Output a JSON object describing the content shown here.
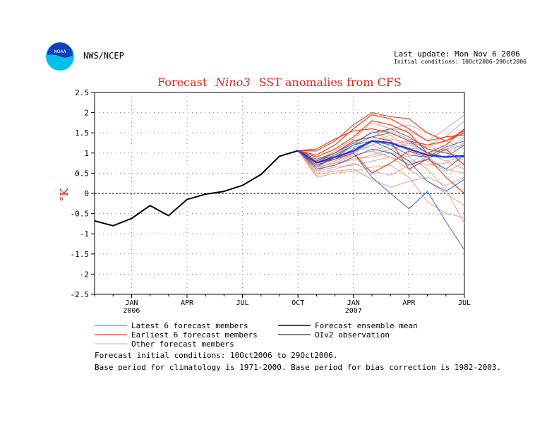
{
  "header": {
    "agency": "NWS/NCEP",
    "logo_text": "NOAA",
    "last_update": "Last update: Mon Nov 6 2006",
    "initial_conditions": "Initial conditions: 10Oct2006-29Oct2006"
  },
  "colors": {
    "title": "#e0201a",
    "latest_members": "#2a72c8",
    "earliest_members": "#e8401a",
    "other_members": "#e8a090",
    "ensemble_mean": "#2040e0",
    "observation": "#000000",
    "logo_outer": "#00c0e8",
    "logo_inner": "#1040c0"
  },
  "chart_data": {
    "type": "line",
    "title_parts": [
      "Forecast",
      "Nino3",
      "SST anomalies from CFS"
    ],
    "ylabel": "°K",
    "ylim": [
      -2.5,
      2.5
    ],
    "yticks": [
      "2.5",
      "2",
      "1.5",
      "1",
      "0.5",
      "0",
      "-0.5",
      "-1",
      "-1.5",
      "-2",
      "-2.5"
    ],
    "xtick_labels": [
      {
        "label": "JAN",
        "sub": "2006"
      },
      {
        "label": "APR",
        "sub": ""
      },
      {
        "label": "JUL",
        "sub": ""
      },
      {
        "label": "OCT",
        "sub": ""
      },
      {
        "label": "JAN",
        "sub": "2007"
      },
      {
        "label": "APR",
        "sub": ""
      },
      {
        "label": "JUL",
        "sub": ""
      }
    ],
    "grid": true,
    "observation": {
      "name": "OIv2 observation",
      "x": [
        "2005-11",
        "2005-12",
        "2006-01",
        "2006-02",
        "2006-03",
        "2006-04",
        "2006-05",
        "2006-06",
        "2006-07",
        "2006-08",
        "2006-09",
        "2006-10"
      ],
      "values": [
        -0.68,
        -0.8,
        -0.62,
        -0.3,
        -0.55,
        -0.15,
        -0.02,
        0.05,
        0.2,
        0.47,
        0.92,
        1.06
      ]
    },
    "forecast_x": [
      "2006-10",
      "2006-11",
      "2006-12",
      "2007-01",
      "2007-02",
      "2007-03",
      "2007-04",
      "2007-05",
      "2007-06",
      "2007-07"
    ],
    "ensemble_mean": {
      "name": "Forecast ensemble mean",
      "values": [
        1.06,
        0.76,
        0.9,
        1.05,
        1.3,
        1.25,
        1.1,
        0.95,
        0.9,
        0.93
      ]
    },
    "latest_members": [
      [
        1.06,
        0.75,
        0.85,
        1.0,
        0.4,
        0.0,
        -0.38,
        0.05,
        -0.7,
        -1.4
      ],
      [
        1.06,
        0.8,
        0.95,
        1.2,
        1.3,
        1.1,
        0.8,
        0.3,
        0.05,
        0.35
      ],
      [
        1.06,
        0.6,
        0.7,
        0.9,
        1.1,
        1.0,
        0.7,
        0.85,
        0.6,
        0.95
      ],
      [
        1.06,
        0.7,
        0.85,
        1.1,
        1.3,
        1.2,
        0.95,
        0.9,
        1.15,
        1.3
      ],
      [
        1.06,
        0.65,
        0.9,
        1.2,
        1.4,
        1.5,
        1.3,
        1.0,
        0.9,
        1.2
      ],
      [
        1.06,
        0.85,
        1.0,
        1.25,
        1.5,
        1.6,
        1.4,
        1.1,
        1.0,
        0.9
      ]
    ],
    "earliest_members": [
      [
        1.06,
        1.05,
        1.3,
        1.7,
        2.0,
        1.9,
        1.85,
        1.5,
        1.3,
        1.55
      ],
      [
        1.06,
        0.95,
        1.2,
        1.6,
        1.95,
        1.85,
        1.6,
        1.3,
        1.4,
        1.45
      ],
      [
        1.06,
        0.9,
        1.1,
        1.4,
        1.8,
        1.7,
        1.5,
        1.0,
        1.2,
        1.6
      ],
      [
        1.06,
        0.8,
        1.0,
        1.3,
        1.4,
        1.3,
        0.6,
        0.85,
        1.1,
        0.7
      ],
      [
        1.06,
        0.7,
        0.85,
        1.0,
        0.5,
        0.75,
        1.05,
        0.9,
        0.4,
        0.0
      ],
      [
        1.06,
        1.1,
        1.35,
        1.55,
        1.6,
        1.5,
        1.3,
        1.2,
        1.3,
        1.5
      ]
    ],
    "other_members": [
      [
        1.06,
        0.6,
        0.8,
        1.0,
        1.2,
        1.35,
        1.25,
        1.0,
        0.8,
        0.9
      ],
      [
        1.06,
        0.55,
        0.75,
        0.95,
        1.05,
        1.2,
        1.3,
        1.1,
        1.0,
        1.25
      ],
      [
        1.06,
        0.65,
        0.9,
        1.15,
        1.25,
        1.45,
        1.1,
        1.15,
        1.3,
        1.6
      ],
      [
        1.06,
        0.7,
        0.95,
        1.2,
        1.55,
        1.3,
        1.05,
        0.8,
        0.55,
        0.75
      ],
      [
        1.06,
        0.45,
        0.55,
        0.6,
        0.35,
        0.15,
        0.3,
        0.4,
        0.2,
        0.4
      ],
      [
        1.06,
        0.6,
        0.7,
        0.85,
        0.9,
        1.0,
        0.9,
        0.6,
        0.1,
        -0.75
      ],
      [
        1.06,
        0.8,
        1.05,
        1.35,
        1.75,
        1.6,
        1.55,
        1.3,
        1.6,
        1.95
      ],
      [
        1.06,
        0.75,
        0.95,
        1.25,
        1.5,
        1.55,
        1.35,
        1.2,
        1.4,
        1.8
      ],
      [
        1.06,
        0.5,
        0.6,
        0.75,
        0.55,
        0.45,
        0.7,
        0.9,
        0.6,
        0.5
      ],
      [
        1.06,
        0.7,
        0.85,
        0.95,
        1.05,
        0.9,
        0.75,
        1.0,
        1.1,
        1.2
      ],
      [
        1.06,
        0.55,
        0.65,
        0.7,
        0.8,
        0.9,
        0.6,
        0.3,
        0.0,
        -0.3
      ],
      [
        1.06,
        0.85,
        1.0,
        1.3,
        1.4,
        1.6,
        1.7,
        1.5,
        1.3,
        1.1
      ],
      [
        1.06,
        0.4,
        0.5,
        0.55,
        0.65,
        0.7,
        0.4,
        -0.2,
        -0.5,
        -0.6
      ],
      [
        1.06,
        0.6,
        0.8,
        1.0,
        1.3,
        1.1,
        1.2,
        1.0,
        0.8,
        0.6
      ],
      [
        1.06,
        0.65,
        0.75,
        0.85,
        0.95,
        1.1,
        1.25,
        1.15,
        1.05,
        1.4
      ],
      [
        1.06,
        0.75,
        0.85,
        1.05,
        1.2,
        1.0,
        0.8,
        0.7,
        0.75,
        0.85
      ]
    ]
  },
  "legend": {
    "latest": "Latest 6 forecast members",
    "earliest": "Earliest 6 forecast members",
    "other": "Other forecast members",
    "mean": "Forecast ensemble mean",
    "obs": "OIv2 observation"
  },
  "notes": {
    "line1": "Forecast initial conditions: 10Oct2006 to 29Oct2006.",
    "line2": "Base period for climatology is 1971-2000. Base period for bias correction is 1982-2003."
  }
}
